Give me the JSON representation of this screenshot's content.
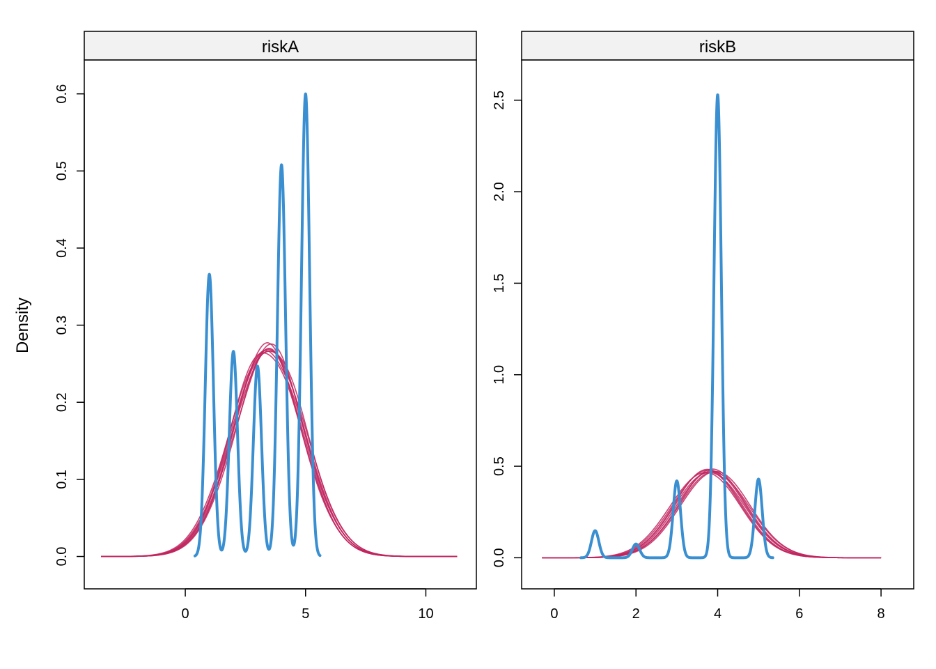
{
  "ylabel": "Density",
  "colors": {
    "observed": "#3a8fd1",
    "replicates": "#c0245e",
    "strip_bg": "#f2f2f2"
  },
  "chart_data": [
    {
      "type": "line",
      "title": "riskA",
      "xlabel": "",
      "ylabel": "Density",
      "xlim": [
        -4.2,
        12.1
      ],
      "ylim": [
        -0.042,
        0.644
      ],
      "xticks": [
        0,
        5,
        10
      ],
      "yticks": [
        0.0,
        0.1,
        0.2,
        0.3,
        0.4,
        0.5,
        0.6
      ],
      "ytick_labels": [
        "0.0",
        "0.1",
        "0.2",
        "0.3",
        "0.4",
        "0.5",
        "0.6"
      ],
      "observed": {
        "range": [
          0.4,
          5.6
        ],
        "peaks": [
          [
            1,
            0.366
          ],
          [
            2,
            0.266
          ],
          [
            3,
            0.247
          ],
          [
            4,
            0.508
          ],
          [
            5,
            0.6
          ]
        ],
        "sd": 0.17
      },
      "replicates": {
        "range": [
          -3.5,
          11.3
        ],
        "mean": 3.45,
        "peak": 0.27,
        "count": 8
      }
    },
    {
      "type": "line",
      "title": "riskB",
      "xlabel": "",
      "ylabel": "",
      "xlim": [
        -0.8,
        8.8
      ],
      "ylim": [
        -0.17,
        2.72
      ],
      "xticks": [
        0,
        2,
        4,
        6,
        8
      ],
      "yticks": [
        0.0,
        0.5,
        1.0,
        1.5,
        2.0,
        2.5
      ],
      "ytick_labels": [
        "0.0",
        "0.5",
        "1.0",
        "1.5",
        "2.0",
        "2.5"
      ],
      "observed": {
        "range": [
          0.65,
          5.35
        ],
        "peaks": [
          [
            1,
            0.148
          ],
          [
            2,
            0.075
          ],
          [
            3,
            0.42
          ],
          [
            4,
            2.53
          ],
          [
            5,
            0.43
          ]
        ],
        "sd": 0.09
      },
      "replicates": {
        "range": [
          -0.3,
          8.0
        ],
        "mean": 3.82,
        "peak": 0.475,
        "count": 8
      }
    }
  ]
}
